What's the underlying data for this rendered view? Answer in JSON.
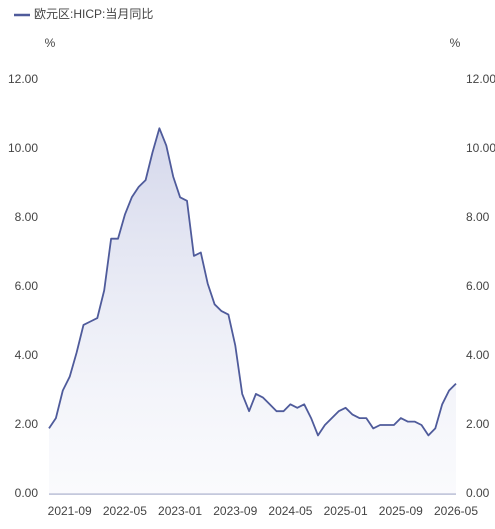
{
  "chart_data": {
    "type": "line",
    "x": [
      null,
      null,
      null,
      "2021-09",
      null,
      null,
      null,
      null,
      null,
      null,
      null,
      "2022-05",
      null,
      null,
      null,
      null,
      null,
      null,
      null,
      "2023-01",
      null,
      null,
      null,
      null,
      null,
      null,
      null,
      "2023-09",
      null,
      null,
      null,
      null,
      null,
      null,
      null,
      "2024-05",
      null,
      null,
      null,
      null,
      null,
      null,
      null,
      "2025-01",
      null,
      null,
      null,
      null,
      null,
      null,
      null,
      "2025-09",
      null,
      null,
      null,
      null,
      null,
      null,
      null,
      "2026-05"
    ],
    "series": [
      {
        "name": "欧元区:HICP:当月同比",
        "color": "#4f5b9b",
        "values": [
          1.9,
          2.2,
          3.0,
          3.4,
          4.1,
          4.9,
          5.0,
          5.1,
          5.9,
          7.4,
          7.4,
          8.1,
          8.6,
          8.9,
          9.1,
          9.9,
          10.6,
          10.1,
          9.2,
          8.6,
          8.5,
          6.9,
          7.0,
          6.1,
          5.5,
          5.3,
          5.2,
          4.3,
          2.9,
          2.4,
          2.9,
          2.8,
          2.6,
          2.4,
          2.4,
          2.6,
          2.5,
          2.6,
          2.2,
          1.7,
          2.0,
          2.2,
          2.4,
          2.5,
          2.3,
          2.2,
          2.2,
          1.9,
          2.0,
          2.0,
          2.0,
          2.2,
          2.1,
          2.1,
          2.0,
          1.7,
          1.9,
          2.6,
          3.0,
          3.2
        ]
      }
    ],
    "y_unit": "%",
    "y2_unit": "%",
    "ylim": [
      0,
      12
    ],
    "yticks": [
      {
        "value": 0,
        "label": "0.00"
      },
      {
        "value": 2,
        "label": "2.00"
      },
      {
        "value": 4,
        "label": "4.00"
      },
      {
        "value": 6,
        "label": "6.00"
      },
      {
        "value": 8,
        "label": "8.00"
      },
      {
        "value": 10,
        "label": "10.00"
      },
      {
        "value": 12,
        "label": "12.00"
      }
    ],
    "y2lim": [
      0,
      12
    ],
    "y2ticks": [
      {
        "value": 0,
        "label": "0.00"
      },
      {
        "value": 2,
        "label": "2.00"
      },
      {
        "value": 4,
        "label": "4.00"
      },
      {
        "value": 6,
        "label": "6.00"
      },
      {
        "value": 8,
        "label": "8.00"
      },
      {
        "value": 10,
        "label": "10.00"
      },
      {
        "value": 12,
        "label": "12.00"
      }
    ],
    "area_fill": true
  }
}
